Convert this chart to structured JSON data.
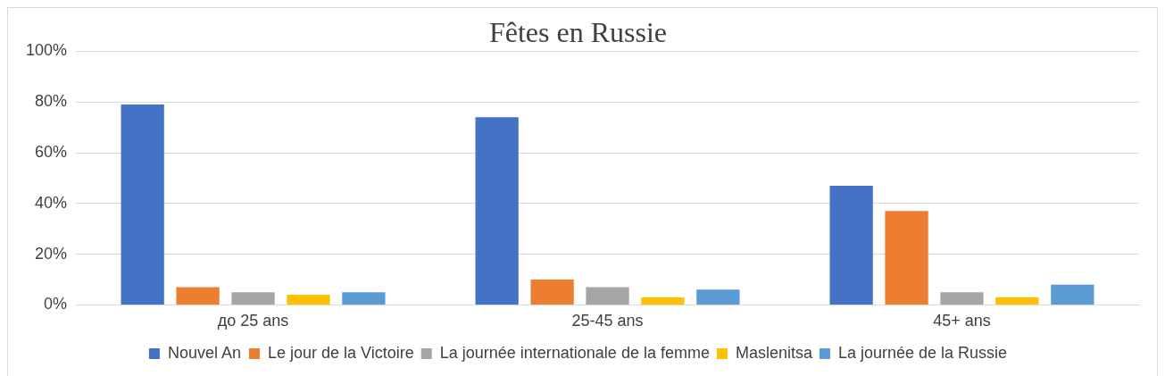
{
  "chart_data": {
    "type": "bar",
    "title": "Fêtes en Russie",
    "categories": [
      "до 25 ans",
      "25-45 ans",
      "45+ ans"
    ],
    "series": [
      {
        "name": "Nouvel An",
        "color": "#4472c4",
        "values": [
          79,
          74,
          47
        ]
      },
      {
        "name": "Le jour de la Victoire",
        "color": "#ed7d31",
        "values": [
          7,
          10,
          37
        ]
      },
      {
        "name": "La journée internationale de la femme",
        "color": "#a5a5a5",
        "values": [
          5,
          7,
          5
        ]
      },
      {
        "name": "Maslenitsa",
        "color": "#ffc000",
        "values": [
          4,
          3,
          3
        ]
      },
      {
        "name": "La journée de la Russie",
        "color": "#5b9bd5",
        "values": [
          5,
          6,
          8
        ]
      }
    ],
    "ylim": [
      0,
      100
    ],
    "yticks": [
      {
        "value": 0,
        "label": "0%"
      },
      {
        "value": 20,
        "label": "20%"
      },
      {
        "value": 40,
        "label": "40%"
      },
      {
        "value": 60,
        "label": "60%"
      },
      {
        "value": 80,
        "label": "80%"
      },
      {
        "value": 100,
        "label": "100%"
      }
    ],
    "grid": "y",
    "legend": "bottom"
  }
}
